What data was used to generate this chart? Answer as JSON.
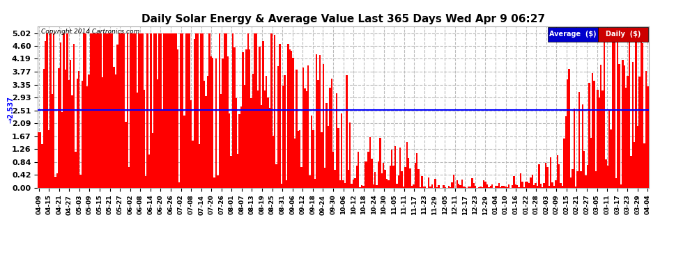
{
  "title": "Daily Solar Energy & Average Value Last 365 Days Wed Apr 9 06:27",
  "copyright": "Copyright 2014 Cartronics.com",
  "average_value": 2.537,
  "bar_color": "#ff0000",
  "average_line_color": "#0000ff",
  "background_color": "#ffffff",
  "grid_color": "#bbbbbb",
  "yticks": [
    0.0,
    0.42,
    0.84,
    1.26,
    1.67,
    2.09,
    2.51,
    2.93,
    3.35,
    3.77,
    4.19,
    4.6,
    5.02
  ],
  "ylim": [
    0.0,
    5.25
  ],
  "legend_avg_color": "#0000cc",
  "legend_daily_color": "#cc0000",
  "legend_avg_text": "Average  ($)",
  "legend_daily_text": "Daily  ($)",
  "xtick_labels": [
    "04-09",
    "04-15",
    "04-21",
    "04-27",
    "05-03",
    "05-09",
    "05-15",
    "05-21",
    "05-27",
    "06-02",
    "06-08",
    "06-14",
    "06-20",
    "06-26",
    "07-02",
    "07-08",
    "07-14",
    "07-20",
    "07-26",
    "08-01",
    "08-07",
    "08-13",
    "08-19",
    "08-25",
    "08-31",
    "09-06",
    "09-12",
    "09-18",
    "09-24",
    "09-30",
    "10-06",
    "10-12",
    "10-18",
    "10-24",
    "10-30",
    "11-05",
    "11-11",
    "11-17",
    "11-23",
    "11-29",
    "12-05",
    "12-11",
    "12-17",
    "12-23",
    "12-29",
    "01-04",
    "01-10",
    "01-16",
    "01-22",
    "01-28",
    "02-03",
    "02-09",
    "02-15",
    "02-21",
    "02-27",
    "03-05",
    "03-11",
    "03-17",
    "03-23",
    "03-29",
    "04-04"
  ],
  "num_bars": 365,
  "seed": 123
}
